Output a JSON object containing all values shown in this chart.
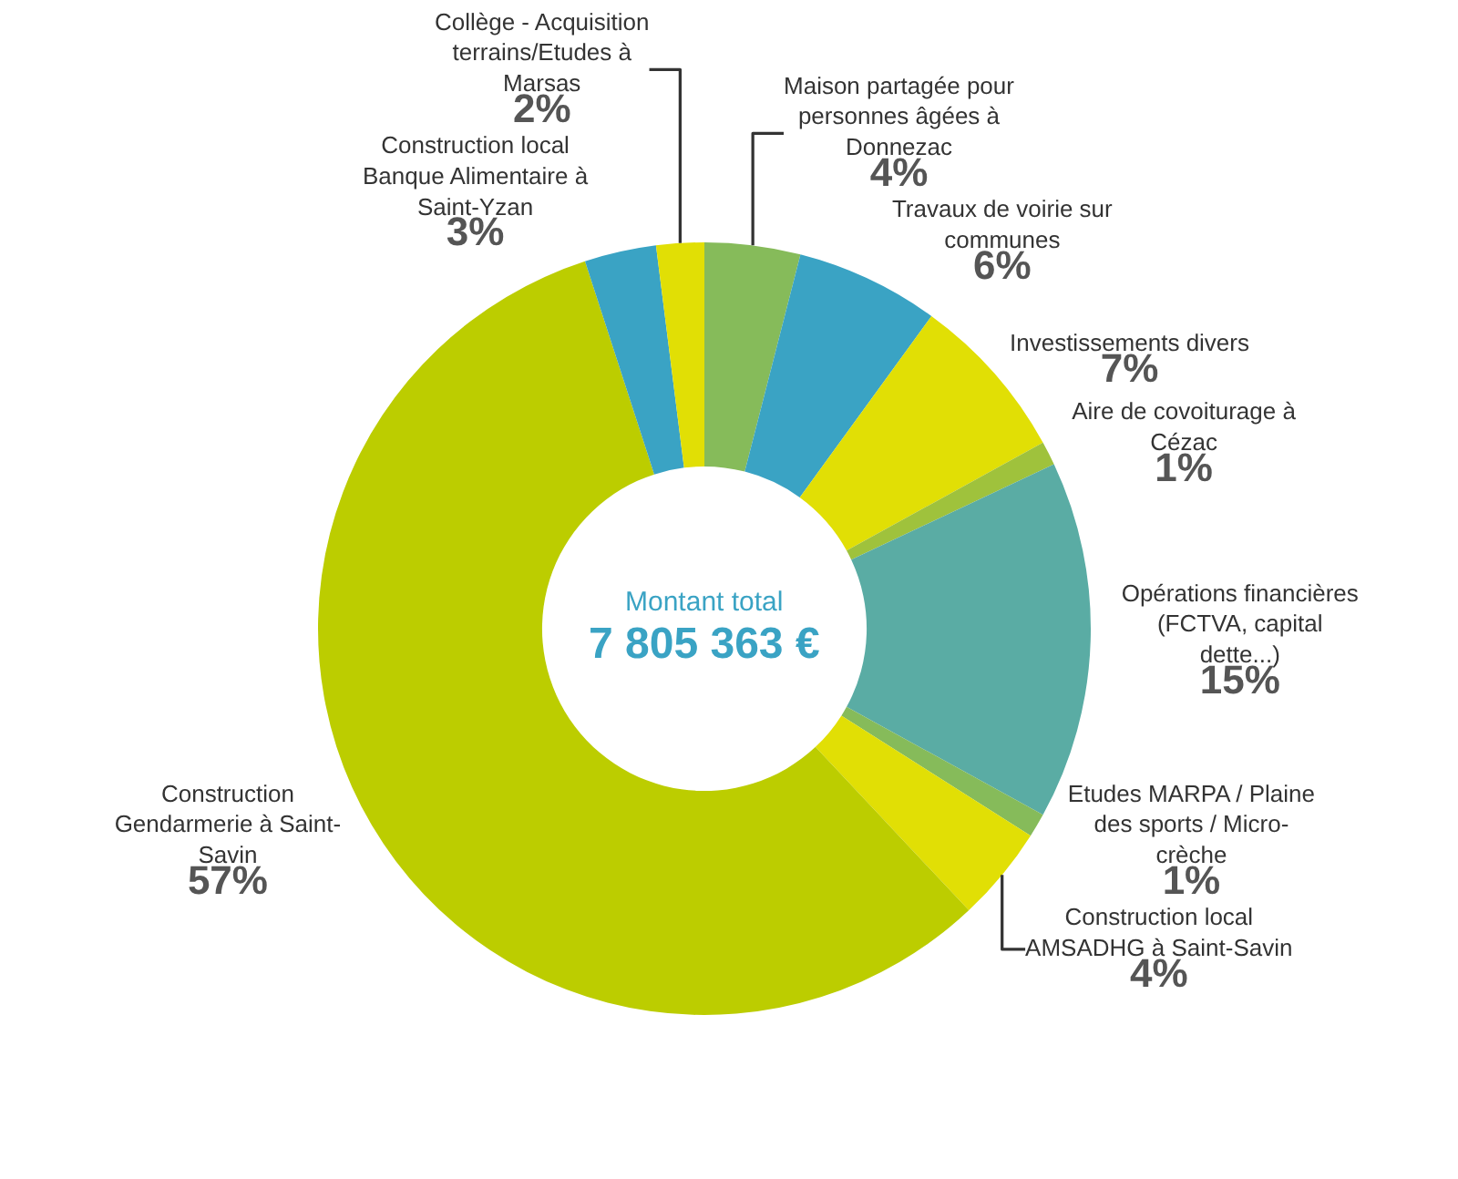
{
  "chart_data": {
    "type": "donut",
    "categories": [
      "Maison partagée pour personnes âgées à Donnezac",
      "Travaux de voirie sur communes",
      "Investissements divers",
      "Aire de covoiturage à Cézac",
      "Opérations financières (FCTVA, capital dette...)",
      "Etudes MARPA / Plaine des sports / Micro-crèche",
      "Construction local AMSADHG à Saint-Savin",
      "Construction Gendarmerie à Saint-Savin",
      "Construction local Banque Alimentaire à Saint-Yzan",
      "Collège - Acquisition terrains/Etudes à Marsas"
    ],
    "values": [
      4,
      6,
      7,
      1,
      15,
      1,
      4,
      57,
      3,
      2
    ],
    "value_labels": [
      "4%",
      "6%",
      "7%",
      "1%",
      "15%",
      "1%",
      "4%",
      "57%",
      "3%",
      "2%"
    ],
    "colors": [
      "#86bb5a",
      "#3aa3c4",
      "#e1df05",
      "#9fc23c",
      "#5aaca4",
      "#86bb5a",
      "#e1df05",
      "#bccd00",
      "#3aa3c4",
      "#e1df05"
    ],
    "annotations": [
      "Montant total",
      "7 805 363 €"
    ],
    "legend": false
  }
}
